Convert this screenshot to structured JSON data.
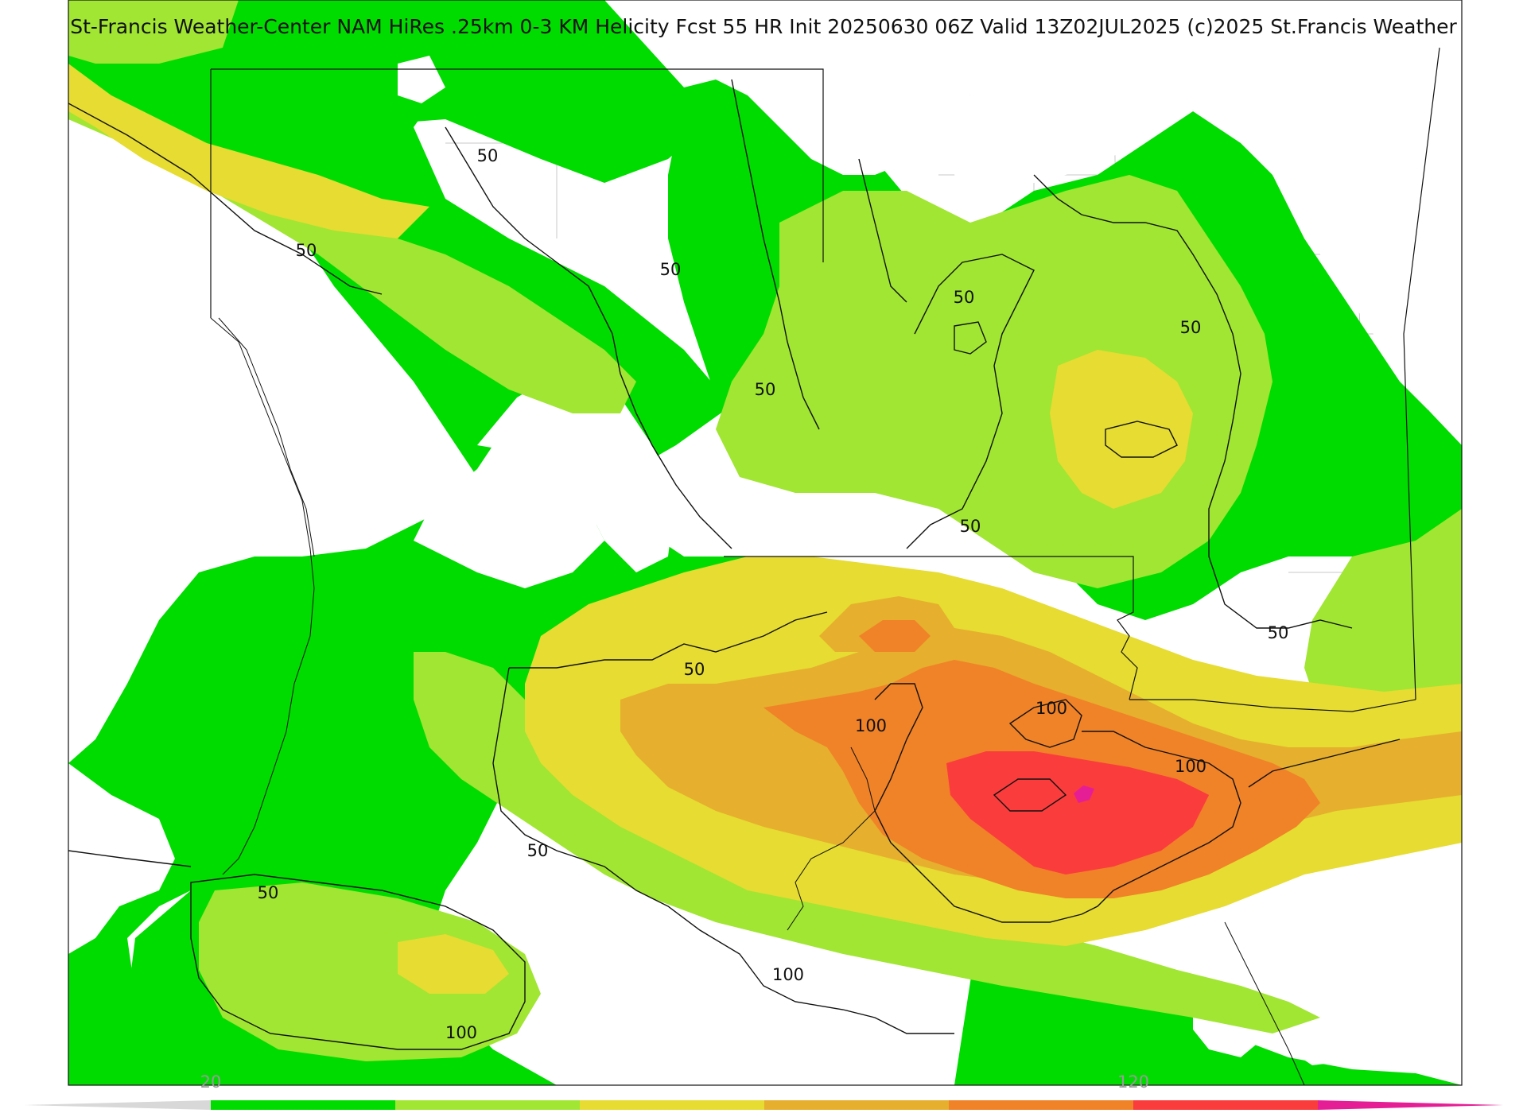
{
  "title": "St-Francis Weather-Center NAM HiRes .25km 0-3 KM Helicity Fcst 55 HR Init 20250630 06Z  Valid 13Z02JUL2025    (c)2025 St.Francis Weather",
  "contour_labels": [
    "50",
    "50",
    "50",
    "50",
    "50",
    "50",
    "50",
    "50",
    "50",
    "50",
    "50",
    "100",
    "100",
    "100",
    "100",
    "100"
  ],
  "colorbar": {
    "tick_labels": [
      "20",
      "120"
    ],
    "colors": [
      "#00dc00",
      "#a0e632",
      "#e6dc32",
      "#e6af2d",
      "#f08228",
      "#fa3c3c",
      "#e61e96"
    ]
  },
  "fill_colors": {
    "green": "#00dc00",
    "light_green": "#a0e632",
    "yellow": "#e6dc32",
    "gold": "#e6af2d",
    "orange": "#f08228",
    "red": "#fa3c3c",
    "magenta": "#e61e96"
  }
}
